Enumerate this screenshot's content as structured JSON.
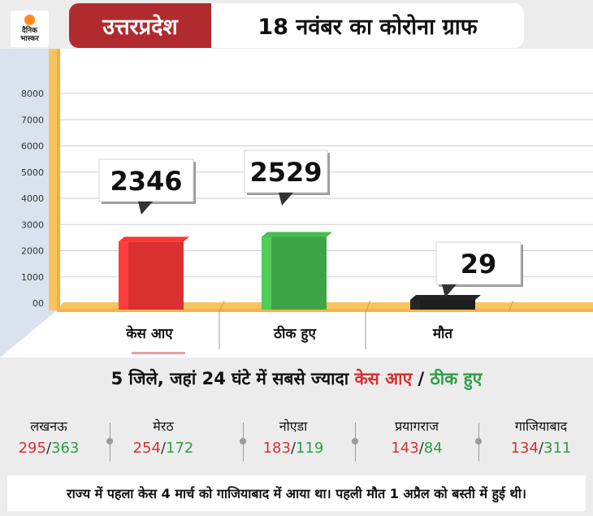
{
  "logo": {
    "line1": "दैनिक",
    "line2": "भास्कर"
  },
  "header": {
    "state": "उत्तरप्रदेश",
    "title": "18 नवंबर का कोरोना ग्राफ"
  },
  "chart_data": {
    "type": "bar",
    "categories": [
      "केस आए",
      "ठीक हुए",
      "मौत"
    ],
    "values": [
      2346,
      2529,
      29
    ],
    "colors": [
      "#d8312f",
      "#3fa447",
      "#1e1e1e"
    ],
    "ylim": [
      0,
      8000
    ],
    "yticks": [
      "00",
      "1000",
      "2000",
      "3000",
      "4000",
      "5000",
      "6000",
      "7000",
      "8000"
    ],
    "grid": true
  },
  "subtitle": {
    "prefix": "5 जिले, जहां 24 घंटे में सबसे ज्यादा ",
    "cases": "केस आए",
    "sep": " / ",
    "recovered": "ठीक हुए"
  },
  "districts": [
    {
      "name": "लखनऊ",
      "cases": "295",
      "recovered": "363"
    },
    {
      "name": "मेरठ",
      "cases": "254",
      "recovered": "172"
    },
    {
      "name": "नोएडा",
      "cases": "183",
      "recovered": "119"
    },
    {
      "name": "प्रयागराज",
      "cases": "143",
      "recovered": "84"
    },
    {
      "name": "गाजियाबाद",
      "cases": "134",
      "recovered": "311"
    }
  ],
  "footer": "राज्य में पहला केस 4 मार्च को गाजियाबाद में आया था। पहली मौत 1 अप्रैल को बस्ती में हुई थी।"
}
